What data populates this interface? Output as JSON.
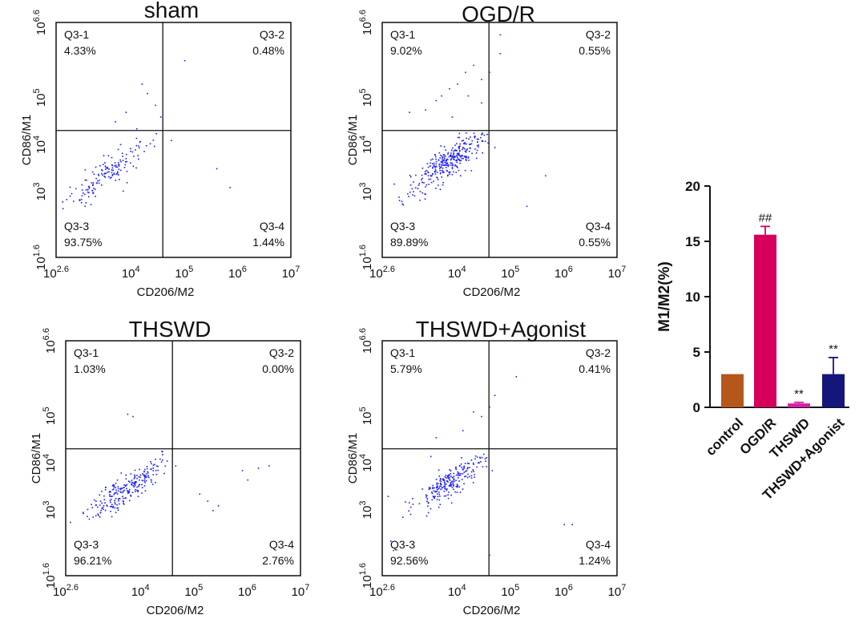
{
  "chart_data": [
    {
      "type": "scatter",
      "title": "sham",
      "xlabel": "CD206/M2",
      "ylabel": "CD86/M1",
      "x_ticks": [
        {
          "base": "10",
          "exp": "2.6"
        },
        {
          "base": "10",
          "exp": "4"
        },
        {
          "base": "10",
          "exp": "5"
        },
        {
          "base": "10",
          "exp": "6"
        },
        {
          "base": "10",
          "exp": "7"
        }
      ],
      "y_ticks": [
        {
          "base": "10",
          "exp": "1.6"
        },
        {
          "base": "10",
          "exp": "3"
        },
        {
          "base": "10",
          "exp": "4"
        },
        {
          "base": "10",
          "exp": "5"
        },
        {
          "base": "10",
          "exp": "6.6"
        }
      ],
      "x_log_range": [
        2.6,
        7
      ],
      "y_log_range": [
        1.6,
        6.6
      ],
      "gate": {
        "x_log": 4.6,
        "y_log": 4.3
      },
      "quadrants": [
        {
          "name": "Q3-1",
          "value": "4.33%"
        },
        {
          "name": "Q3-2",
          "value": "0.48%"
        },
        {
          "name": "Q3-3",
          "value": "93.75%"
        },
        {
          "name": "Q3-4",
          "value": "1.44%"
        }
      ],
      "cluster": {
        "cx": 3.6,
        "cy": 3.45,
        "sx": 0.35,
        "sy": 0.35,
        "n": 150,
        "seed": 11
      },
      "outliers": [
        [
          5.85,
          3.1
        ],
        [
          5.6,
          3.5
        ],
        [
          4.75,
          4.1
        ],
        [
          4.55,
          4.6
        ],
        [
          4.45,
          4.85
        ],
        [
          4.2,
          5.3
        ],
        [
          4.3,
          5.1
        ],
        [
          3.9,
          4.7
        ],
        [
          3.7,
          4.5
        ],
        [
          4.1,
          4.35
        ],
        [
          5.0,
          5.8
        ]
      ]
    },
    {
      "type": "scatter",
      "title": "OGD/R",
      "xlabel": "CD206/M2",
      "ylabel": "CD86/M1",
      "x_ticks": [
        {
          "base": "10",
          "exp": "2.6"
        },
        {
          "base": "10",
          "exp": "4"
        },
        {
          "base": "10",
          "exp": "5"
        },
        {
          "base": "10",
          "exp": "6"
        },
        {
          "base": "10",
          "exp": "7"
        }
      ],
      "y_ticks": [
        {
          "base": "10",
          "exp": "1.6"
        },
        {
          "base": "10",
          "exp": "3"
        },
        {
          "base": "10",
          "exp": "4"
        },
        {
          "base": "10",
          "exp": "5"
        },
        {
          "base": "10",
          "exp": "6.6"
        }
      ],
      "x_log_range": [
        2.6,
        7
      ],
      "y_log_range": [
        1.6,
        6.6
      ],
      "gate": {
        "x_log": 4.6,
        "y_log": 4.3
      },
      "quadrants": [
        {
          "name": "Q3-1",
          "value": "9.02%"
        },
        {
          "name": "Q3-2",
          "value": "0.55%"
        },
        {
          "name": "Q3-3",
          "value": "89.89%"
        },
        {
          "name": "Q3-4",
          "value": "0.55%"
        }
      ],
      "cluster": {
        "cx": 3.85,
        "cy": 3.65,
        "sx": 0.35,
        "sy": 0.33,
        "n": 320,
        "seed": 23
      },
      "outliers": [
        [
          5.3,
          2.7
        ],
        [
          5.65,
          3.35
        ],
        [
          4.7,
          3.95
        ],
        [
          4.8,
          6.35
        ],
        [
          4.8,
          5.95
        ],
        [
          4.6,
          5.55
        ],
        [
          4.45,
          5.4
        ],
        [
          4.3,
          5.7
        ],
        [
          4.15,
          5.55
        ],
        [
          4.0,
          5.3
        ],
        [
          3.85,
          5.2
        ],
        [
          3.7,
          5.05
        ],
        [
          3.6,
          4.95
        ],
        [
          3.4,
          4.75
        ],
        [
          3.1,
          4.7
        ],
        [
          4.45,
          4.9
        ],
        [
          4.2,
          5.05
        ],
        [
          3.9,
          4.6
        ]
      ]
    },
    {
      "type": "scatter",
      "title": "THSWD",
      "xlabel": "CD206/M2",
      "ylabel": "CD86/M1",
      "x_ticks": [
        {
          "base": "10",
          "exp": "2.6"
        },
        {
          "base": "10",
          "exp": "4"
        },
        {
          "base": "10",
          "exp": "5"
        },
        {
          "base": "10",
          "exp": "6"
        },
        {
          "base": "10",
          "exp": "7"
        }
      ],
      "y_ticks": [
        {
          "base": "10",
          "exp": "1.6"
        },
        {
          "base": "10",
          "exp": "3"
        },
        {
          "base": "10",
          "exp": "4"
        },
        {
          "base": "10",
          "exp": "5"
        },
        {
          "base": "10",
          "exp": "6.6"
        }
      ],
      "x_log_range": [
        2.6,
        7
      ],
      "y_log_range": [
        1.6,
        6.6
      ],
      "gate": {
        "x_log": 4.6,
        "y_log": 4.3
      },
      "quadrants": [
        {
          "name": "Q3-1",
          "value": "1.03%"
        },
        {
          "name": "Q3-2",
          "value": "0.00%"
        },
        {
          "name": "Q3-3",
          "value": "96.21%"
        },
        {
          "name": "Q3-4",
          "value": "2.76%"
        }
      ],
      "cluster": {
        "cx": 3.7,
        "cy": 3.45,
        "sx": 0.33,
        "sy": 0.3,
        "n": 230,
        "seed": 37
      },
      "outliers": [
        [
          5.25,
          3.2
        ],
        [
          5.35,
          3.0
        ],
        [
          5.45,
          3.1
        ],
        [
          5.1,
          3.35
        ],
        [
          5.9,
          3.85
        ],
        [
          6.2,
          3.9
        ],
        [
          6.0,
          3.65
        ],
        [
          6.4,
          3.95
        ],
        [
          4.65,
          3.95
        ],
        [
          4.4,
          4.25
        ],
        [
          3.75,
          5.05
        ],
        [
          3.85,
          5.0
        ]
      ]
    },
    {
      "type": "scatter",
      "title": "THSWD+Agonist",
      "xlabel": "CD206/M2",
      "ylabel": "CD86/M1",
      "x_ticks": [
        {
          "base": "10",
          "exp": "2.6"
        },
        {
          "base": "10",
          "exp": "4"
        },
        {
          "base": "10",
          "exp": "5"
        },
        {
          "base": "10",
          "exp": "6"
        },
        {
          "base": "10",
          "exp": "7"
        }
      ],
      "y_ticks": [
        {
          "base": "10",
          "exp": "1.6"
        },
        {
          "base": "10",
          "exp": "3"
        },
        {
          "base": "10",
          "exp": "4"
        },
        {
          "base": "10",
          "exp": "5"
        },
        {
          "base": "10",
          "exp": "6.6"
        }
      ],
      "x_log_range": [
        2.6,
        7
      ],
      "y_log_range": [
        1.6,
        6.6
      ],
      "gate": {
        "x_log": 4.6,
        "y_log": 4.3
      },
      "quadrants": [
        {
          "name": "Q3-1",
          "value": "5.79%"
        },
        {
          "name": "Q3-2",
          "value": "0.41%"
        },
        {
          "name": "Q3-3",
          "value": "92.56%"
        },
        {
          "name": "Q3-4",
          "value": "1.24%"
        }
      ],
      "cluster": {
        "cx": 3.85,
        "cy": 3.6,
        "sx": 0.33,
        "sy": 0.3,
        "n": 230,
        "seed": 53
      },
      "outliers": [
        [
          6.0,
          2.7
        ],
        [
          6.15,
          2.7
        ],
        [
          4.65,
          3.85
        ],
        [
          5.1,
          5.85
        ],
        [
          4.7,
          5.45
        ],
        [
          4.6,
          5.2
        ],
        [
          4.45,
          5.0
        ],
        [
          4.3,
          5.1
        ],
        [
          4.1,
          4.7
        ],
        [
          3.6,
          4.55
        ],
        [
          3.5,
          4.15
        ],
        [
          2.75,
          2.35
        ],
        [
          2.8,
          2.15
        ],
        [
          2.7,
          3.3
        ],
        [
          4.6,
          2.05
        ]
      ]
    },
    {
      "type": "bar",
      "title": "",
      "xlabel": "",
      "ylabel": "M1/M2(%)",
      "ylim": [
        0,
        20
      ],
      "yticks": [
        "0",
        "5",
        "10",
        "15",
        "20"
      ],
      "categories": [
        "control",
        "OGD/R",
        "THSWD",
        "THSWD+Agonist"
      ],
      "values": [
        3.0,
        15.6,
        0.35,
        3.0
      ],
      "errors": [
        0,
        0.75,
        0.1,
        1.5
      ],
      "colors": [
        "#b5561b",
        "#d6005a",
        "#d51fa6",
        "#14167a"
      ],
      "annotations": [
        "",
        "##",
        "**",
        "**"
      ]
    }
  ]
}
